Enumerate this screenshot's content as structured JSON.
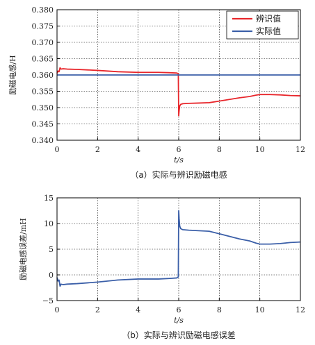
{
  "chart_data": [
    {
      "type": "line",
      "caption": "（a）实际与辨识励磁电感",
      "xlabel": "t/s",
      "ylabel": "励磁电感/H",
      "xlim": [
        0,
        12
      ],
      "ylim": [
        0.34,
        0.38
      ],
      "xticks": [
        "0",
        "2",
        "4",
        "6",
        "8",
        "10",
        "12"
      ],
      "yticks": [
        "0.340",
        "0.345",
        "0.350",
        "0.355",
        "0.360",
        "0.365",
        "0.370",
        "0.375",
        "0.380"
      ],
      "grid": true,
      "legend_position": "top-right",
      "series": [
        {
          "name": "辨识值",
          "color": "#e8262b",
          "x": [
            0,
            0.05,
            0.1,
            0.15,
            0.2,
            0.3,
            0.5,
            1,
            2,
            3,
            4,
            5,
            5.5,
            5.9,
            5.98,
            6.0,
            6.02,
            6.05,
            6.1,
            6.2,
            6.5,
            7,
            7.5,
            8,
            8.5,
            9,
            9.5,
            9.8,
            10,
            10.5,
            11,
            11.5,
            12
          ],
          "y": [
            0.3605,
            0.3612,
            0.361,
            0.3622,
            0.3618,
            0.3619,
            0.3618,
            0.3617,
            0.3614,
            0.361,
            0.3608,
            0.3608,
            0.3607,
            0.3606,
            0.3604,
            0.3475,
            0.349,
            0.3505,
            0.351,
            0.3512,
            0.3513,
            0.3514,
            0.3515,
            0.352,
            0.3525,
            0.353,
            0.3534,
            0.3538,
            0.354,
            0.354,
            0.3539,
            0.3537,
            0.3536
          ]
        },
        {
          "name": "实际值",
          "color": "#3b5fa8",
          "x": [
            0,
            12
          ],
          "y": [
            0.36,
            0.36
          ]
        }
      ]
    },
    {
      "type": "line",
      "caption": "（b）实际与辨识励磁电感误差",
      "xlabel": "t/s",
      "ylabel": "励磁电感误差/mH",
      "xlim": [
        0,
        12
      ],
      "ylim": [
        -5,
        15
      ],
      "xticks": [
        "0",
        "2",
        "4",
        "6",
        "8",
        "10",
        "12"
      ],
      "yticks": [
        "−5",
        "0",
        "5",
        "10",
        "15"
      ],
      "grid": true,
      "series": [
        {
          "color": "#3b5fa8",
          "x": [
            0,
            0.05,
            0.1,
            0.15,
            0.2,
            0.3,
            0.5,
            1,
            2,
            3,
            4,
            5,
            5.5,
            5.9,
            5.98,
            6.0,
            6.02,
            6.05,
            6.1,
            6.2,
            6.5,
            7,
            7.5,
            8,
            8.5,
            9,
            9.5,
            9.8,
            10,
            10.5,
            11,
            11.5,
            12
          ],
          "y": [
            -0.5,
            -1.2,
            -1.0,
            -2.2,
            -1.8,
            -1.9,
            -1.8,
            -1.7,
            -1.4,
            -1.0,
            -0.8,
            -0.8,
            -0.7,
            -0.6,
            -0.4,
            12.5,
            11.0,
            9.5,
            9.0,
            8.8,
            8.7,
            8.6,
            8.5,
            8.0,
            7.5,
            7.0,
            6.6,
            6.2,
            6.0,
            6.0,
            6.1,
            6.3,
            6.4
          ]
        }
      ]
    }
  ]
}
